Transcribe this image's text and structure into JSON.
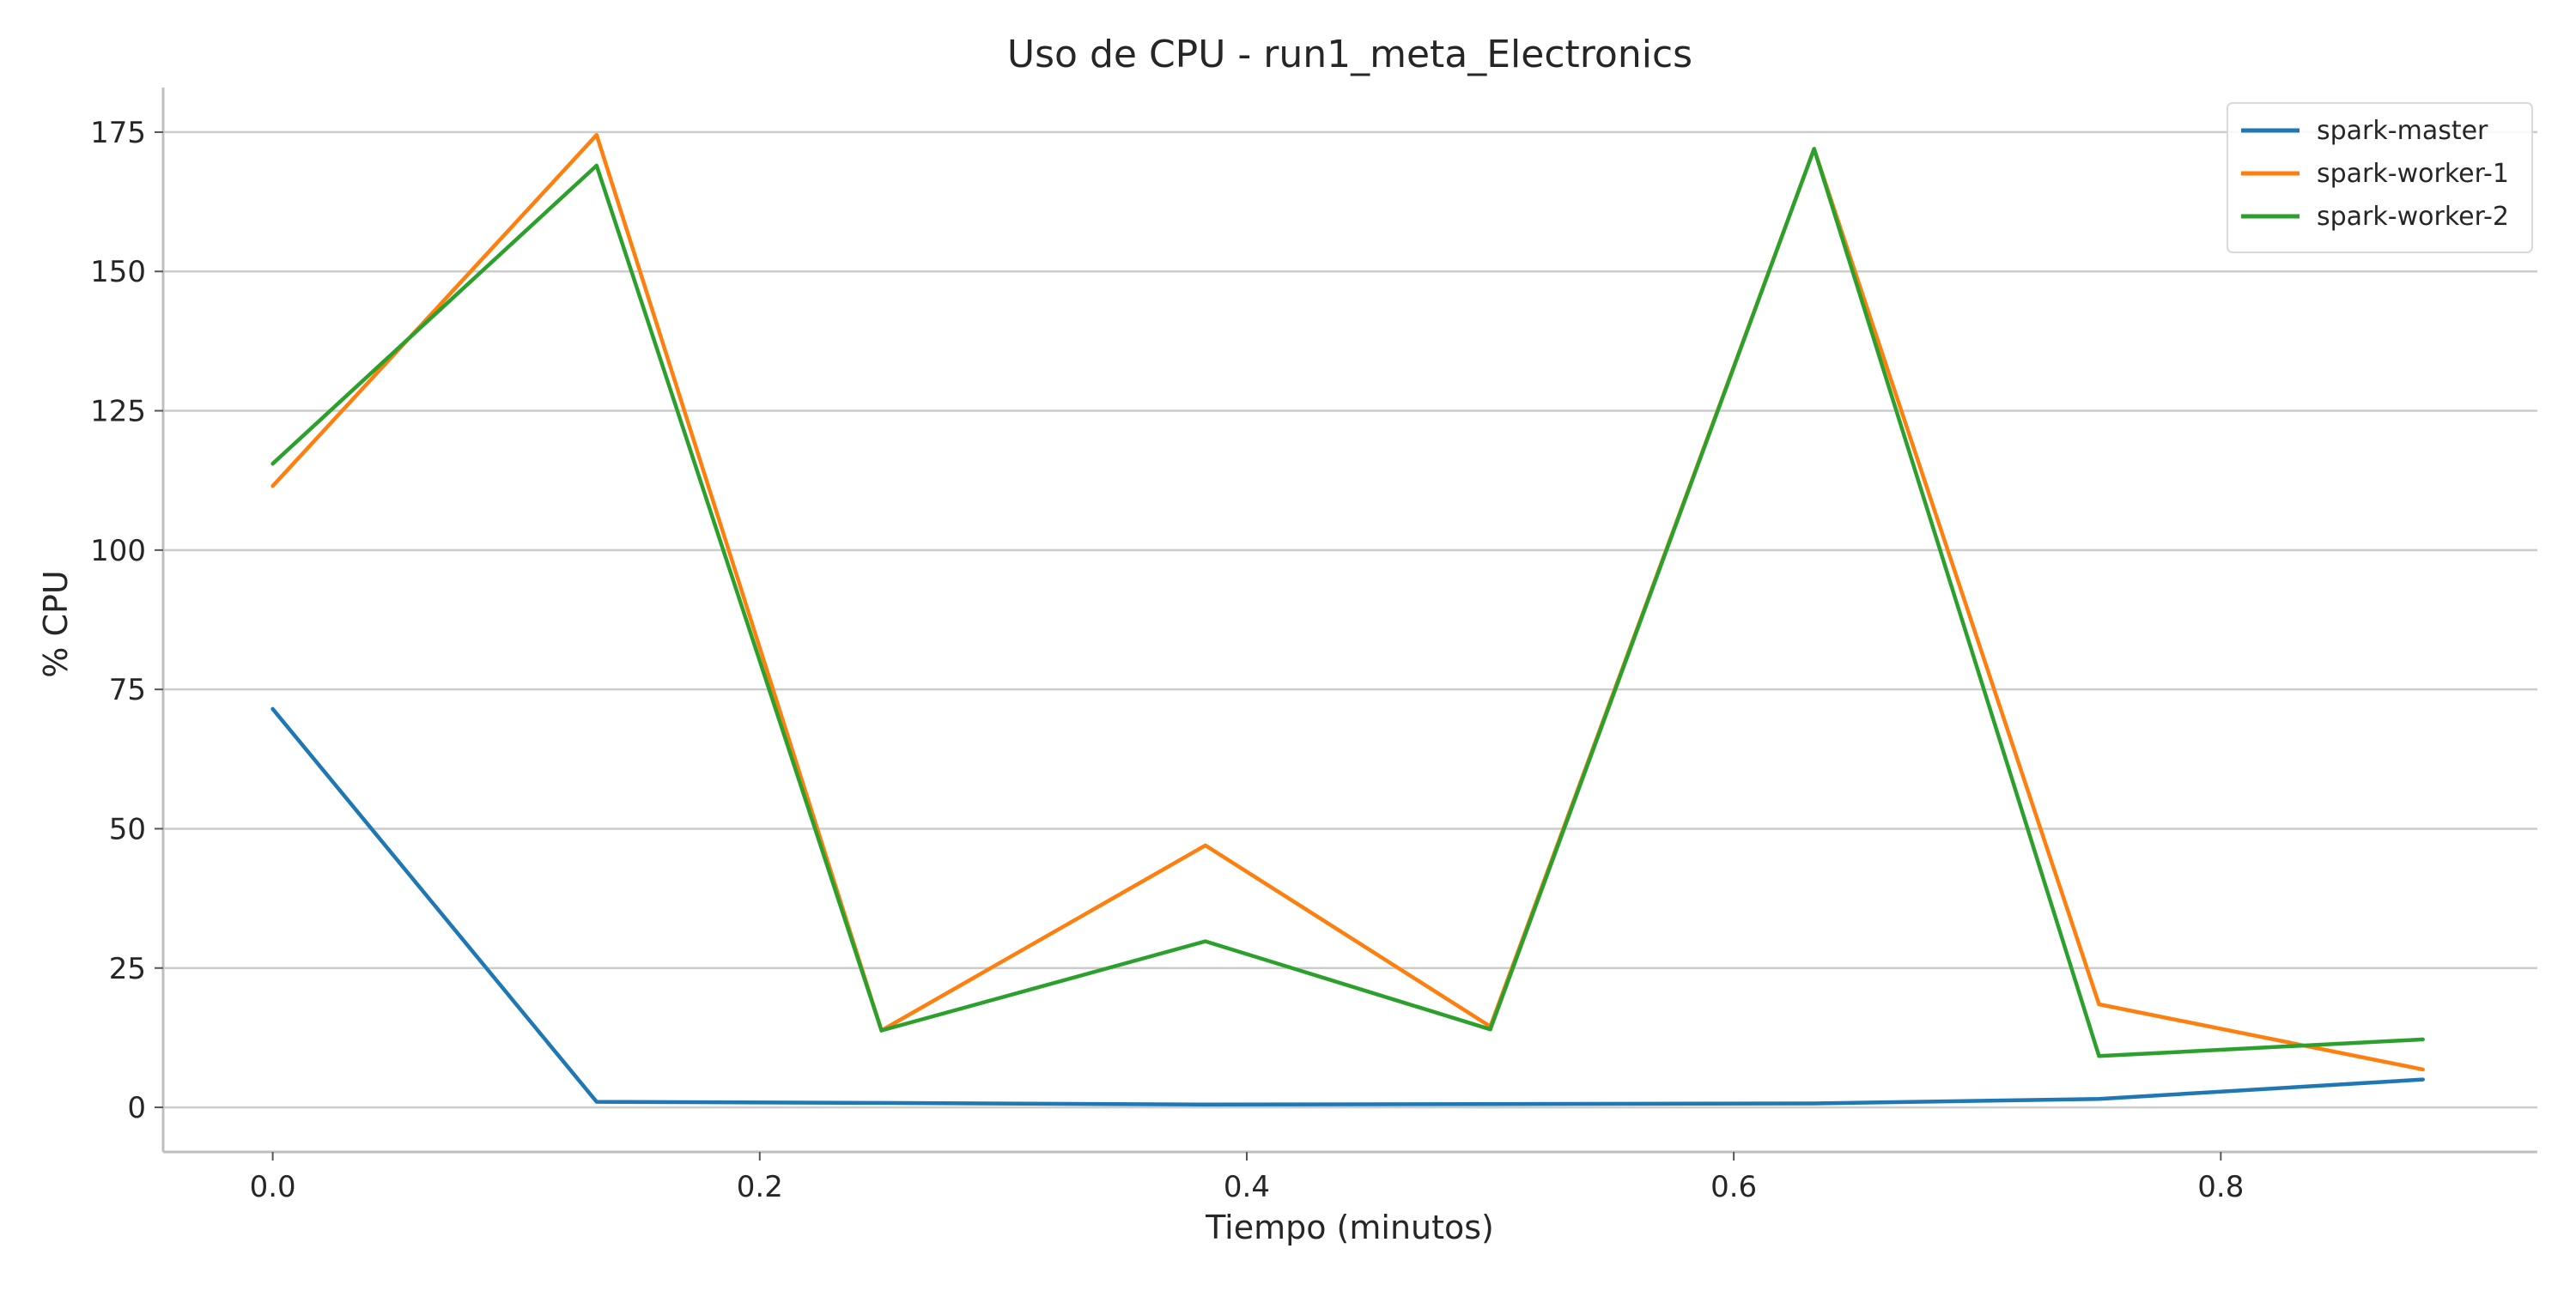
{
  "chart_data": {
    "type": "line",
    "title": "Uso de CPU - run1_meta_Electronics",
    "xlabel": "Tiempo (minutos)",
    "ylabel": "% CPU",
    "xlim": [
      -0.045,
      0.93
    ],
    "ylim": [
      -8,
      183
    ],
    "xticks": [
      0.0,
      0.2,
      0.4,
      0.6,
      0.8
    ],
    "xtick_labels": [
      "0.0",
      "0.2",
      "0.4",
      "0.6",
      "0.8"
    ],
    "yticks": [
      0,
      25,
      50,
      75,
      100,
      125,
      150,
      175
    ],
    "ytick_labels": [
      "0",
      "25",
      "50",
      "75",
      "100",
      "125",
      "150",
      "175"
    ],
    "grid": "horizontal",
    "legend_position": "top-right",
    "x": [
      0.0,
      0.133,
      0.25,
      0.383,
      0.5,
      0.633,
      0.75,
      0.883
    ],
    "series": [
      {
        "name": "spark-master",
        "color": "#1f77b4",
        "values": [
          71.5,
          1.0,
          0.8,
          0.5,
          0.6,
          0.7,
          1.5,
          5.0
        ]
      },
      {
        "name": "spark-worker-1",
        "color": "#ff7f0e",
        "values": [
          111.5,
          174.5,
          13.8,
          47.0,
          14.5,
          172.0,
          18.5,
          6.8
        ]
      },
      {
        "name": "spark-worker-2",
        "color": "#2ca02c",
        "values": [
          115.5,
          169.0,
          13.8,
          29.8,
          14.0,
          172.0,
          9.2,
          12.2
        ]
      }
    ]
  }
}
